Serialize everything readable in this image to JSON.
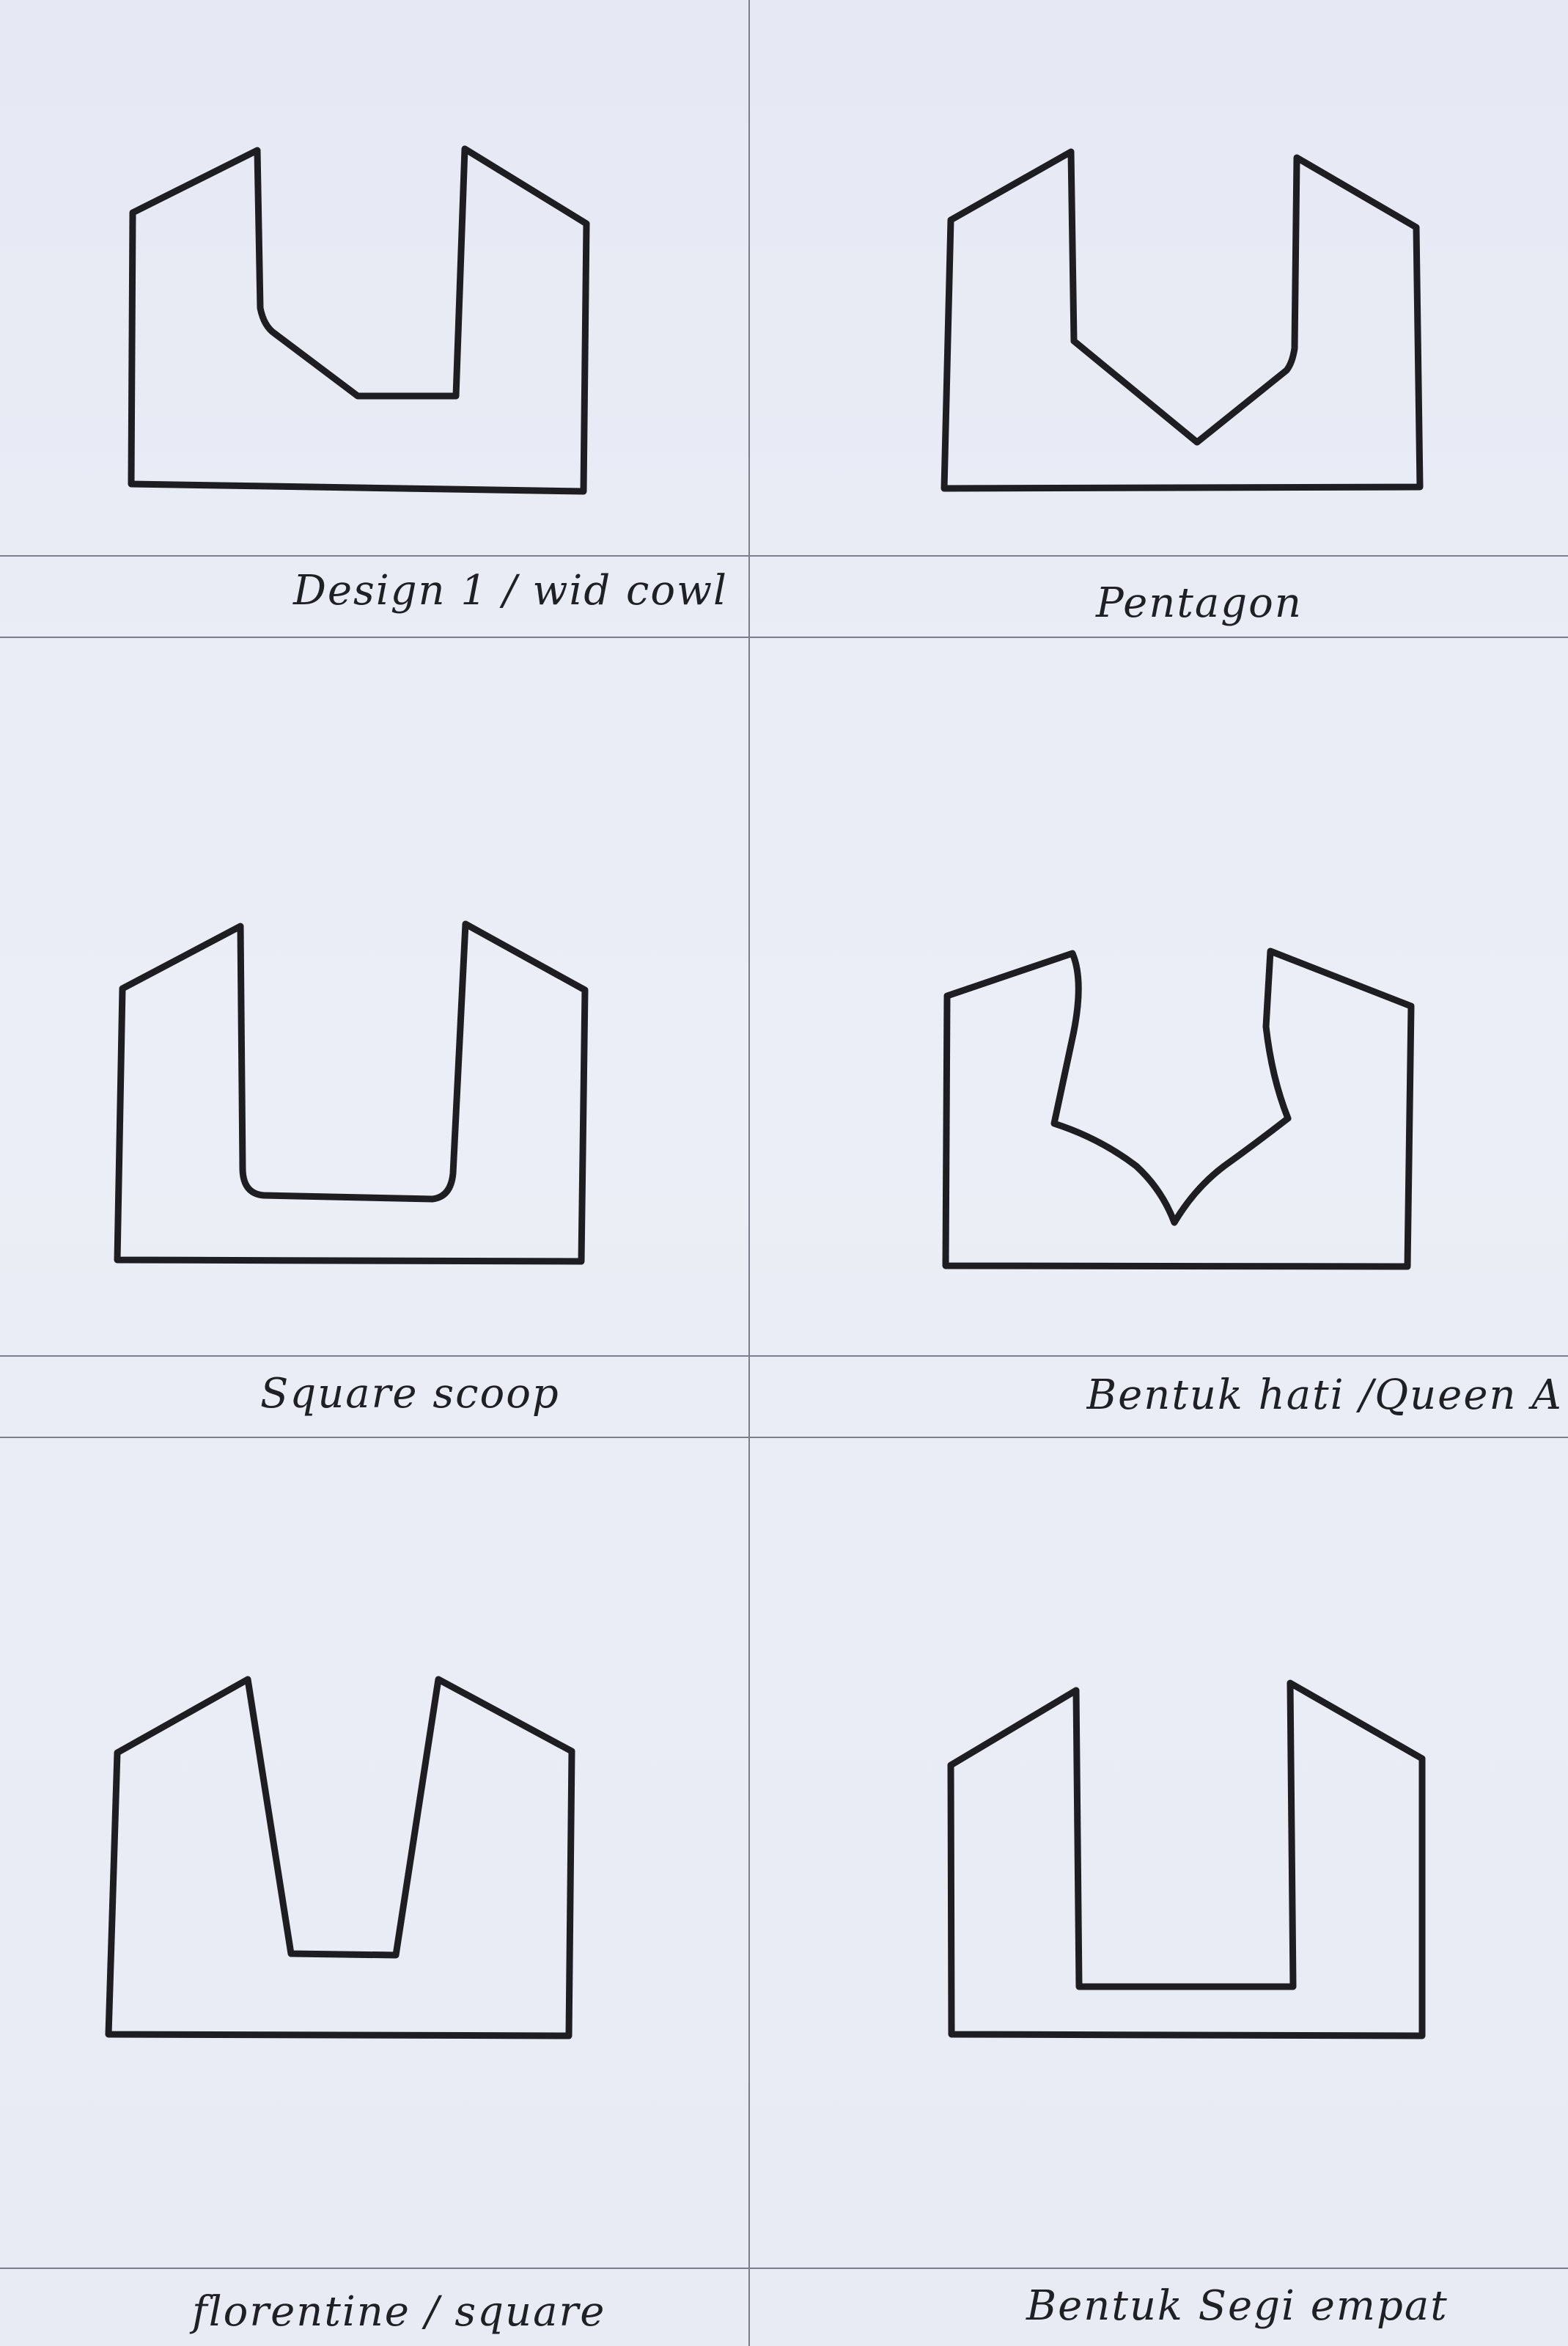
{
  "captions": {
    "c1": "Design 1 / wid cowl",
    "c2": "Pentagon",
    "c3": "Square scoop",
    "c4": "Bentuk hati /Queen Anne",
    "c5": "florentine / square",
    "c6": "Bentuk Segi empat"
  },
  "colors": {
    "paper": "#e9ebf5",
    "ink": "#1d1d22",
    "rule": "#7b7f8c"
  }
}
